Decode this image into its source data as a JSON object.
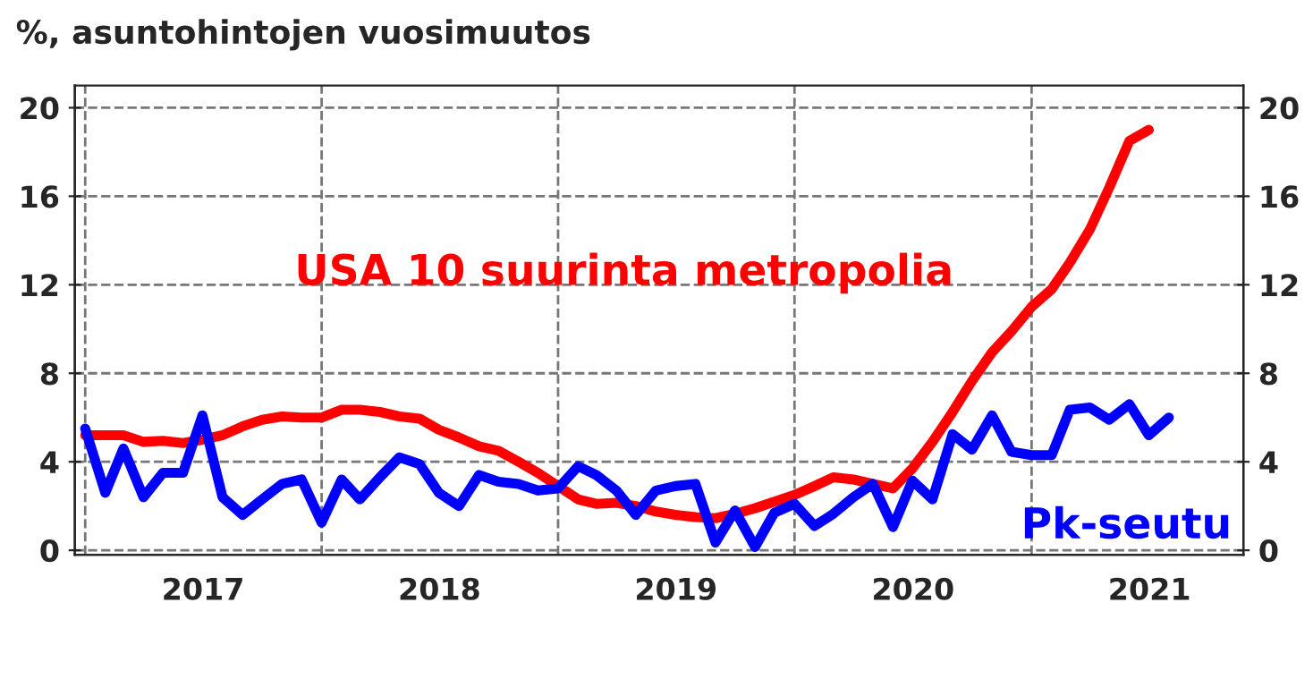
{
  "chart_data": {
    "type": "line",
    "title": "%, asuntohintojen vuosimuutos",
    "x": [
      "2017-01",
      "2017-02",
      "2017-03",
      "2017-04",
      "2017-05",
      "2017-06",
      "2017-07",
      "2017-08",
      "2017-09",
      "2017-10",
      "2017-11",
      "2017-12",
      "2018-01",
      "2018-02",
      "2018-03",
      "2018-04",
      "2018-05",
      "2018-06",
      "2018-07",
      "2018-08",
      "2018-09",
      "2018-10",
      "2018-11",
      "2018-12",
      "2019-01",
      "2019-02",
      "2019-03",
      "2019-04",
      "2019-05",
      "2019-06",
      "2019-07",
      "2019-08",
      "2019-09",
      "2019-10",
      "2019-11",
      "2019-12",
      "2020-01",
      "2020-02",
      "2020-03",
      "2020-04",
      "2020-05",
      "2020-06",
      "2020-07",
      "2020-08",
      "2020-09",
      "2020-10",
      "2020-11",
      "2020-12",
      "2021-01",
      "2021-02",
      "2021-03",
      "2021-04",
      "2021-05",
      "2021-06",
      "2021-07",
      "2021-08"
    ],
    "series": [
      {
        "name": "USA 10 suurinta metropolia",
        "color": "#ff0000",
        "values": [
          5.2,
          5.2,
          5.2,
          4.9,
          4.95,
          4.85,
          5.0,
          5.2,
          5.6,
          5.9,
          6.05,
          6.0,
          6.0,
          6.35,
          6.35,
          6.25,
          6.05,
          5.95,
          5.45,
          5.1,
          4.7,
          4.5,
          4.0,
          3.5,
          2.9,
          2.3,
          2.1,
          2.15,
          2.0,
          1.75,
          1.6,
          1.5,
          1.45,
          1.65,
          1.9,
          2.2,
          2.5,
          2.9,
          3.3,
          3.2,
          3.0,
          2.8,
          3.7,
          4.9,
          6.25,
          7.65,
          8.95,
          9.9,
          11.0,
          11.8,
          13.0,
          14.5,
          16.4,
          18.5,
          19.0,
          null
        ]
      },
      {
        "name": "Pk-seutu",
        "color": "#0000ff",
        "values": [
          5.5,
          2.6,
          4.6,
          2.4,
          3.5,
          3.5,
          6.1,
          2.4,
          1.6,
          2.3,
          3.0,
          3.2,
          1.25,
          3.2,
          2.3,
          3.3,
          4.2,
          3.9,
          2.6,
          2.0,
          3.4,
          3.1,
          3.0,
          2.7,
          2.8,
          3.8,
          3.4,
          2.7,
          1.6,
          2.7,
          2.9,
          3.0,
          0.35,
          1.8,
          0.15,
          1.7,
          2.1,
          1.1,
          1.65,
          2.4,
          3.0,
          1.05,
          3.15,
          2.3,
          5.25,
          4.55,
          6.1,
          4.45,
          4.3,
          4.3,
          6.35,
          6.45,
          5.9,
          6.6,
          5.2,
          6.0
        ]
      }
    ],
    "xlim": [
      "2016-12-16",
      "2021-11-24"
    ],
    "xticks": [
      {
        "value": "2017-01-01",
        "label": null
      },
      {
        "value": "2017-07-02",
        "label": "2017"
      },
      {
        "value": "2018-01-01",
        "label": null
      },
      {
        "value": "2018-07-02",
        "label": "2018"
      },
      {
        "value": "2019-01-01",
        "label": null
      },
      {
        "value": "2019-07-02",
        "label": "2019"
      },
      {
        "value": "2020-01-01",
        "label": null
      },
      {
        "value": "2020-07-02",
        "label": "2020"
      },
      {
        "value": "2021-01-01",
        "label": null
      },
      {
        "value": "2021-07-02",
        "label": "2021"
      }
    ],
    "ylim": [
      -0.2,
      21
    ],
    "yticks": [
      0,
      4,
      8,
      12,
      16,
      20
    ],
    "y2lim": [
      -0.2,
      21
    ],
    "y2ticks": [
      0,
      4,
      8,
      12,
      16,
      20
    ],
    "grid": true,
    "legend": false,
    "line_style": "solid",
    "marker": "none"
  }
}
